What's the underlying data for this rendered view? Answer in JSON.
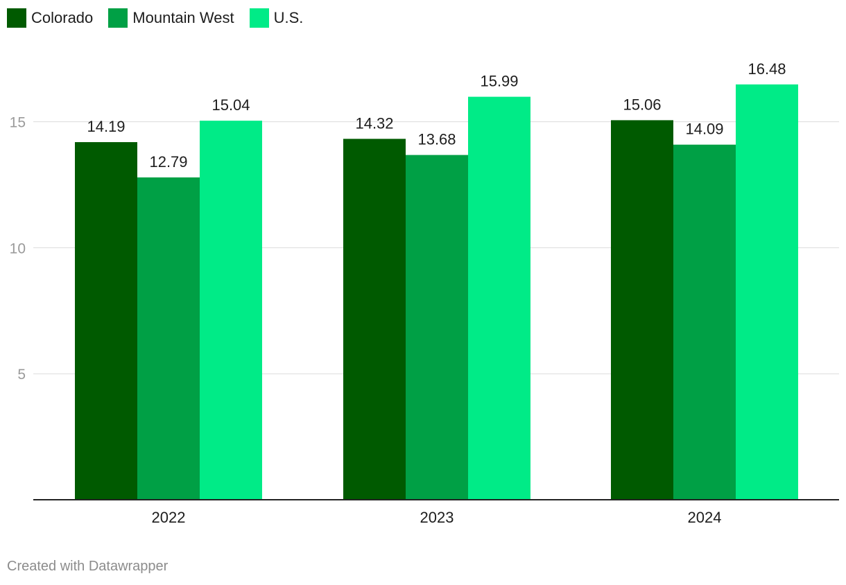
{
  "legend": [
    {
      "label": "Colorado",
      "color": "#005a00"
    },
    {
      "label": "Mountain West",
      "color": "#00a045"
    },
    {
      "label": "U.S.",
      "color": "#00eb87"
    }
  ],
  "chart_data": {
    "type": "bar",
    "categories": [
      "2022",
      "2023",
      "2024"
    ],
    "series": [
      {
        "name": "Colorado",
        "values": [
          14.19,
          14.32,
          15.06
        ],
        "color": "#005a00"
      },
      {
        "name": "Mountain West",
        "values": [
          12.79,
          13.68,
          14.09
        ],
        "color": "#00a045"
      },
      {
        "name": "U.S.",
        "values": [
          15.04,
          15.99,
          16.48
        ],
        "color": "#00eb87"
      }
    ],
    "y_ticks": [
      "5",
      "10",
      "15"
    ],
    "ylim": [
      0,
      17.5
    ],
    "grid": true,
    "legend_position": "top-left",
    "title": "",
    "xlabel": "",
    "ylabel": ""
  },
  "footer": {
    "credit": "Created with Datawrapper"
  }
}
